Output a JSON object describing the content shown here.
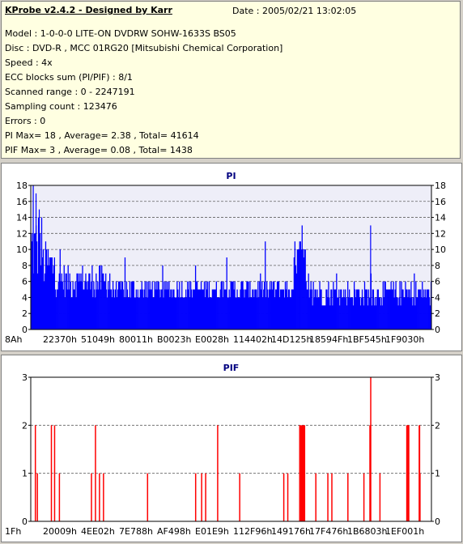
{
  "header": {
    "title": "KProbe v2.4.2 - Designed by Karr",
    "date": "Date : 2005/02/21 13:02:05",
    "lines": [
      "Model : 1-0-0-0 LITE-ON DVDRW SOHW-1633S BS05",
      "Disc : DVD-R , MCC 01RG20  [Mitsubishi Chemical Corporation]",
      "Speed : 4x",
      "ECC blocks sum (PI/PIF) : 8/1",
      "Scanned range : 0 - 2247191",
      "Sampling count : 123476",
      "Errors : 0",
      "PI Max= 18 , Average= 2.38 , Total= 41614",
      "PIF Max= 3 , Average= 0.08 , Total= 1438"
    ]
  },
  "chart_data": [
    {
      "type": "bar",
      "title": "PI",
      "color": "#0000ff",
      "background": "#eeeef8",
      "ylim": [
        0,
        18
      ],
      "yticks": [
        0,
        2,
        4,
        6,
        8,
        10,
        12,
        14,
        16,
        18
      ],
      "grid": true,
      "xtick_labels": [
        "8Ah",
        "22370h",
        "51049h",
        "80011h",
        "B0023h",
        "E0028h",
        "114402h",
        "14D125h",
        "18594Fh",
        "1BF545h",
        "1F9030h"
      ],
      "base_level": 5,
      "samples": 500,
      "segments": [
        {
          "from": 0.0,
          "to": 0.03,
          "base": 10,
          "noise": 5
        },
        {
          "from": 0.03,
          "to": 0.06,
          "base": 8,
          "noise": 3
        },
        {
          "from": 0.06,
          "to": 0.2,
          "base": 6,
          "noise": 2
        },
        {
          "from": 0.2,
          "to": 0.65,
          "base": 5,
          "noise": 1.5
        },
        {
          "from": 0.655,
          "to": 0.685,
          "base": 9,
          "noise": 2
        },
        {
          "from": 0.685,
          "to": 1.0,
          "base": 4.5,
          "noise": 1.5
        }
      ],
      "peaks": [
        {
          "pos": 0.005,
          "value": 18
        },
        {
          "pos": 0.012,
          "value": 17
        },
        {
          "pos": 0.02,
          "value": 15
        },
        {
          "pos": 0.67,
          "value": 11
        },
        {
          "pos": 0.847,
          "value": 13
        }
      ]
    },
    {
      "type": "bar",
      "title": "PIF",
      "color": "#ff0000",
      "background": "#ffffff",
      "ylim": [
        0,
        3
      ],
      "yticks": [
        0,
        1,
        2,
        3
      ],
      "grid": true,
      "xtick_labels": [
        "1Fh",
        "20009h",
        "4EE02h",
        "7E788h",
        "AF498h",
        "E01E9h",
        "112F96h",
        "149176h",
        "17F476h",
        "1B6803h",
        "1EF001h"
      ],
      "spikes": [
        {
          "pos": 0.01,
          "value": 2
        },
        {
          "pos": 0.015,
          "value": 1
        },
        {
          "pos": 0.05,
          "value": 2
        },
        {
          "pos": 0.058,
          "value": 2
        },
        {
          "pos": 0.07,
          "value": 1
        },
        {
          "pos": 0.15,
          "value": 1
        },
        {
          "pos": 0.16,
          "value": 2
        },
        {
          "pos": 0.17,
          "value": 1
        },
        {
          "pos": 0.18,
          "value": 1
        },
        {
          "pos": 0.29,
          "value": 1
        },
        {
          "pos": 0.41,
          "value": 1
        },
        {
          "pos": 0.425,
          "value": 1
        },
        {
          "pos": 0.435,
          "value": 1
        },
        {
          "pos": 0.465,
          "value": 2
        },
        {
          "pos": 0.52,
          "value": 1
        },
        {
          "pos": 0.63,
          "value": 1
        },
        {
          "pos": 0.64,
          "value": 1
        },
        {
          "pos": 0.67,
          "value": 2
        },
        {
          "pos": 0.68,
          "value": 2
        },
        {
          "pos": 0.71,
          "value": 1
        },
        {
          "pos": 0.74,
          "value": 1
        },
        {
          "pos": 0.75,
          "value": 1
        },
        {
          "pos": 0.79,
          "value": 1
        },
        {
          "pos": 0.83,
          "value": 1
        },
        {
          "pos": 0.845,
          "value": 2
        },
        {
          "pos": 0.847,
          "value": 3
        },
        {
          "pos": 0.87,
          "value": 1
        },
        {
          "pos": 0.94,
          "value": 2
        },
        {
          "pos": 0.97,
          "value": 1
        }
      ],
      "blocks": [
        {
          "from": 0.67,
          "to": 0.685,
          "value": 2
        },
        {
          "from": 0.937,
          "to": 0.945,
          "value": 2
        },
        {
          "from": 0.968,
          "to": 0.972,
          "value": 2
        }
      ]
    }
  ]
}
